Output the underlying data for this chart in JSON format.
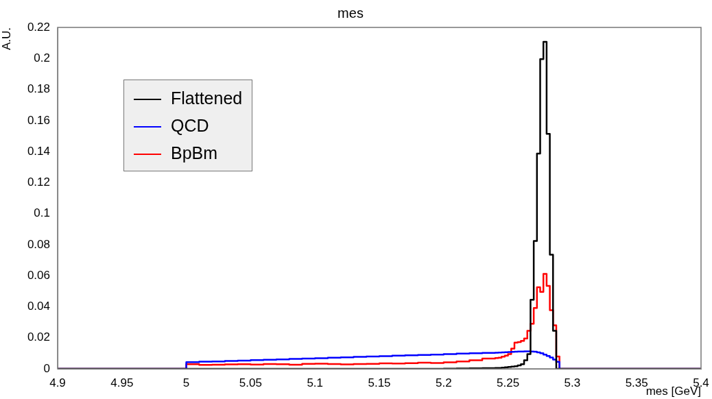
{
  "chart_data": {
    "type": "histogram",
    "title": "mes",
    "xlabel": "mes [GeV]",
    "ylabel": "A.U.",
    "bins": [
      4.9,
      5.0,
      5.01,
      5.02,
      5.03,
      5.04,
      5.05,
      5.06,
      5.07,
      5.08,
      5.09,
      5.1,
      5.11,
      5.12,
      5.13,
      5.14,
      5.15,
      5.16,
      5.17,
      5.18,
      5.19,
      5.2,
      5.21,
      5.22,
      5.23,
      5.24,
      5.2425,
      5.245,
      5.2475,
      5.25,
      5.2525,
      5.255,
      5.2575,
      5.26,
      5.2625,
      5.265,
      5.2675,
      5.27,
      5.2725,
      5.275,
      5.2775,
      5.28,
      5.2825,
      5.285,
      5.2875,
      5.29,
      5.4
    ],
    "series": [
      {
        "name": "Flattened",
        "color": "#000000",
        "values": [
          0,
          0,
          0,
          0,
          0,
          0,
          0,
          0,
          0,
          0,
          0,
          0,
          0,
          0,
          0,
          0,
          0,
          0,
          0,
          0,
          0,
          0.0001,
          0.0002,
          0.0003,
          0.0004,
          0.0005,
          0.0006,
          0.0008,
          0.001,
          0.0012,
          0.0014,
          0.0017,
          0.0022,
          0.003,
          0.0055,
          0.0095,
          0.0445,
          0.0824,
          0.1387,
          0.1996,
          0.2107,
          0.1514,
          0.0735,
          0.0245,
          0,
          0
        ]
      },
      {
        "name": "QCD",
        "color": "#0000ff",
        "values": [
          0,
          0.0043,
          0.0046,
          0.0048,
          0.0051,
          0.0053,
          0.0056,
          0.0059,
          0.0061,
          0.0064,
          0.0066,
          0.0069,
          0.0072,
          0.0074,
          0.0077,
          0.0079,
          0.0082,
          0.0085,
          0.0087,
          0.009,
          0.0092,
          0.0095,
          0.0098,
          0.01,
          0.0103,
          0.0104,
          0.0105,
          0.0106,
          0.0107,
          0.0108,
          0.0109,
          0.011,
          0.0111,
          0.0112,
          0.0113,
          0.0113,
          0.0112,
          0.011,
          0.0106,
          0.01,
          0.0092,
          0.0083,
          0.0073,
          0.006,
          0.0045,
          0
        ]
      },
      {
        "name": "BpBm",
        "color": "#ff0000",
        "values": [
          0,
          0.003,
          0.0025,
          0.0027,
          0.0029,
          0.003,
          0.0028,
          0.0031,
          0.003,
          0.0027,
          0.0032,
          0.0033,
          0.0031,
          0.0029,
          0.0031,
          0.0032,
          0.0035,
          0.0034,
          0.0037,
          0.004,
          0.0038,
          0.0042,
          0.0047,
          0.0055,
          0.0066,
          0.007,
          0.0072,
          0.0078,
          0.0085,
          0.0095,
          0.013,
          0.0169,
          0.0172,
          0.018,
          0.0196,
          0.0245,
          0.029,
          0.0392,
          0.0526,
          0.0496,
          0.0612,
          0.0535,
          0.0378,
          0.028,
          0.008,
          0
        ]
      }
    ],
    "xlim": [
      4.9,
      5.4
    ],
    "xticks": [
      4.9,
      4.95,
      5,
      5.05,
      5.1,
      5.15,
      5.2,
      5.25,
      5.3,
      5.35,
      5.4
    ],
    "ylim": [
      0,
      0.22
    ],
    "yticks": [
      0,
      0.02,
      0.04,
      0.06,
      0.08,
      0.1,
      0.12,
      0.14,
      0.16,
      0.18,
      0.2,
      0.22
    ],
    "legend": "top left",
    "grid": false
  }
}
